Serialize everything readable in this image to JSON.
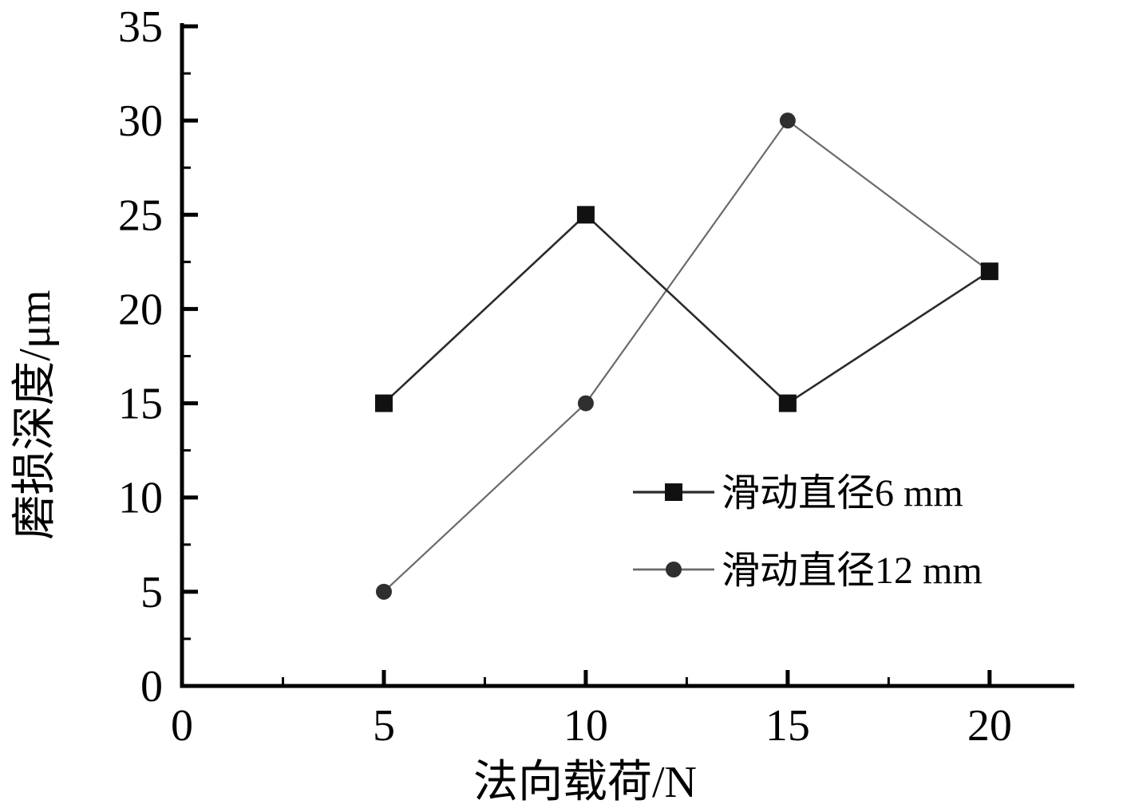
{
  "figure": {
    "background": "#ffffff"
  },
  "chart_data": {
    "type": "line",
    "title": "",
    "xlabel": "法向载荷/N",
    "ylabel": "磨损深度/μm",
    "xlim": [
      0,
      22
    ],
    "ylim": [
      0,
      35
    ],
    "x_ticks": [
      0,
      5,
      10,
      15,
      20
    ],
    "y_ticks": [
      0,
      5,
      10,
      15,
      20,
      25,
      30,
      35
    ],
    "minor_tick_step": 2.5,
    "grid": false,
    "legend_position": "center-right",
    "axis_color": "#000000",
    "x": [
      5,
      10,
      15,
      20
    ],
    "series": [
      {
        "name": "滑动直径6 mm",
        "marker": "square",
        "line_color": "#2b2b2b",
        "marker_color": "#111111",
        "line_width": 2.6,
        "values": [
          15,
          25,
          15,
          22
        ]
      },
      {
        "name": "滑动直径12 mm",
        "marker": "circle",
        "line_color": "#6a6a6a",
        "marker_color": "#2f2f2f",
        "line_width": 2.2,
        "values": [
          5,
          15,
          30,
          22
        ]
      }
    ]
  }
}
